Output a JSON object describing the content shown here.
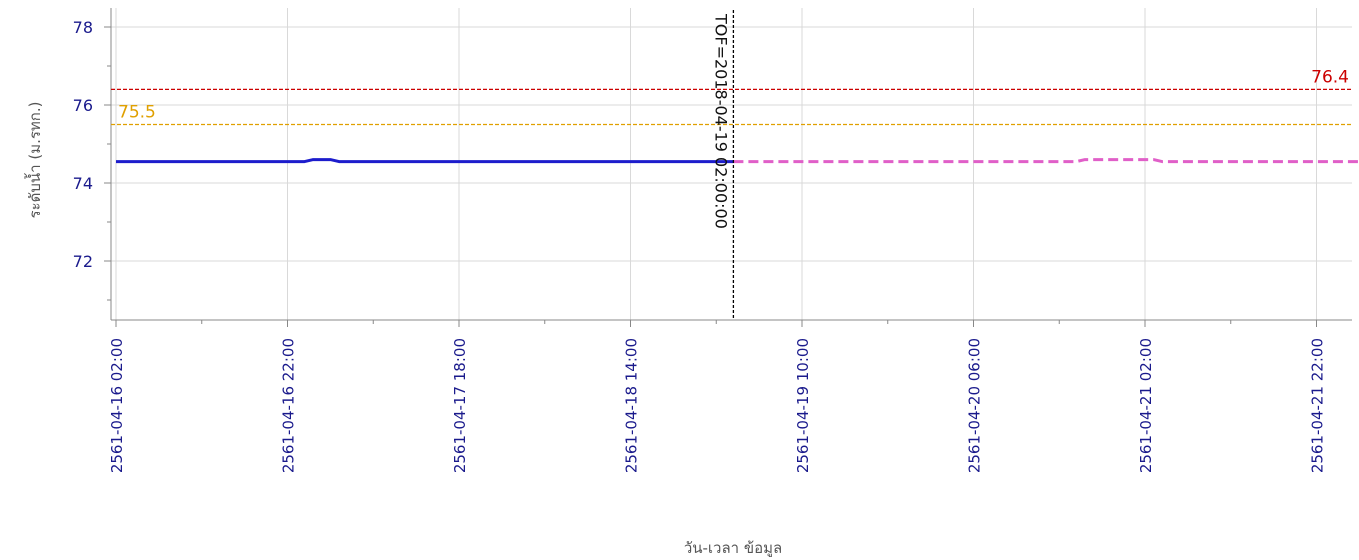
{
  "chart_data": {
    "type": "line",
    "title": "",
    "xlabel": "วัน-เวลา ข้อมูล",
    "ylabel": "ระดับน้ำ (ม.รทก.)",
    "x_ticks": [
      "2561-04-16 02:00",
      "2561-04-16 22:00",
      "2561-04-17 18:00",
      "2561-04-18 14:00",
      "2561-04-19 10:00",
      "2561-04-20 06:00",
      "2561-04-21 02:00",
      "2561-04-21 22:00"
    ],
    "y_ticks": [
      "72",
      "74",
      "76",
      "78"
    ],
    "ylim": [
      70.6,
      78.4
    ],
    "grid": true,
    "reference_lines": [
      {
        "label": "76.4",
        "value": 76.4,
        "color": "#cc0000"
      },
      {
        "label": "75.5",
        "value": 75.5,
        "color": "#e0a000"
      }
    ],
    "tof": {
      "label": "TOF=2018-04-19 02:00:00",
      "color": "#000000"
    },
    "series": [
      {
        "style": "solid",
        "color": "#1c1ccc",
        "points": [
          [
            "2561-04-16 02:00",
            74.55
          ],
          [
            "2561-04-17 00:00",
            74.55
          ],
          [
            "2561-04-17 01:00",
            74.6
          ],
          [
            "2561-04-17 03:00",
            74.6
          ],
          [
            "2561-04-17 04:00",
            74.55
          ],
          [
            "2561-04-19 02:00",
            74.55
          ]
        ]
      },
      {
        "style": "dashed",
        "color": "#e05fc8",
        "points": [
          [
            "2561-04-19 02:00",
            74.55
          ],
          [
            "2561-04-20 18:00",
            74.55
          ],
          [
            "2561-04-20 19:00",
            74.6
          ],
          [
            "2561-04-21 03:00",
            74.6
          ],
          [
            "2561-04-21 04:00",
            74.55
          ],
          [
            "2561-04-22 03:00",
            74.55
          ]
        ]
      }
    ]
  }
}
